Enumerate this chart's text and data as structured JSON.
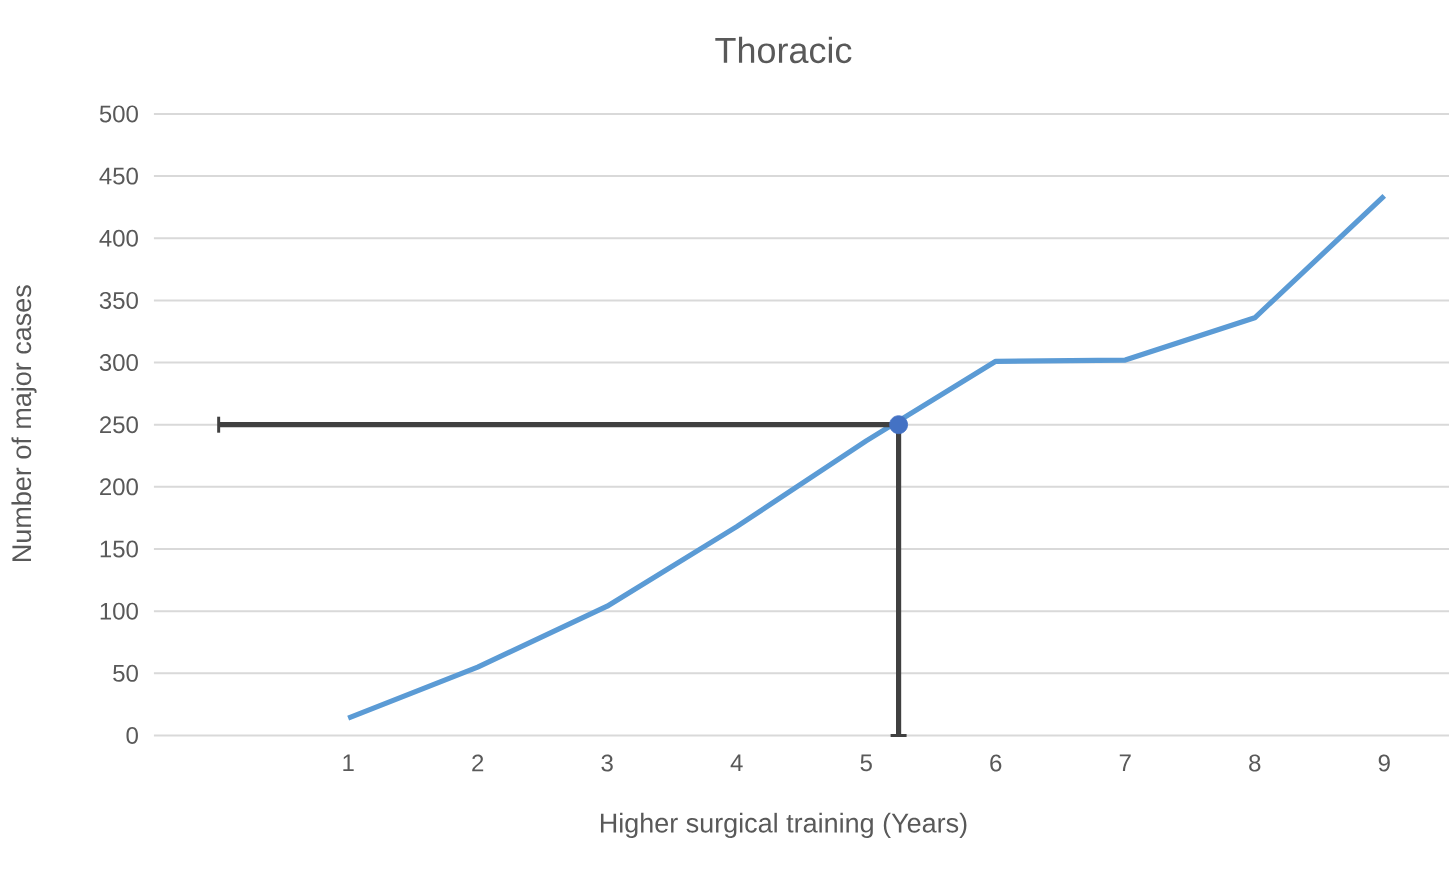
{
  "chart_data": {
    "type": "line",
    "title": "Thoracic",
    "xlabel": "Higher surgical training (Years)",
    "ylabel": "Number of major cases",
    "x": [
      1,
      2,
      3,
      4,
      5,
      6,
      7,
      8,
      9
    ],
    "xlim": [
      -0.5,
      9.5
    ],
    "xticks": [
      1,
      2,
      3,
      4,
      5,
      6,
      7,
      8,
      9
    ],
    "ylim": [
      0,
      500
    ],
    "yticks": [
      0,
      50,
      100,
      150,
      200,
      250,
      300,
      350,
      400,
      450,
      500
    ],
    "grid": "y",
    "series": [
      {
        "type": "line",
        "color": "#5b9bd5",
        "values": [
          14,
          55,
          104,
          168,
          237,
          301,
          302,
          336,
          434
        ]
      },
      {
        "type": "scatter",
        "color": "#4472c4",
        "x": [
          5.25
        ],
        "values": [
          250
        ],
        "errors": [
          [
            0,
            250
          ]
        ],
        "xerrors": [
          [
            0,
            5.25
          ]
        ]
      }
    ]
  }
}
